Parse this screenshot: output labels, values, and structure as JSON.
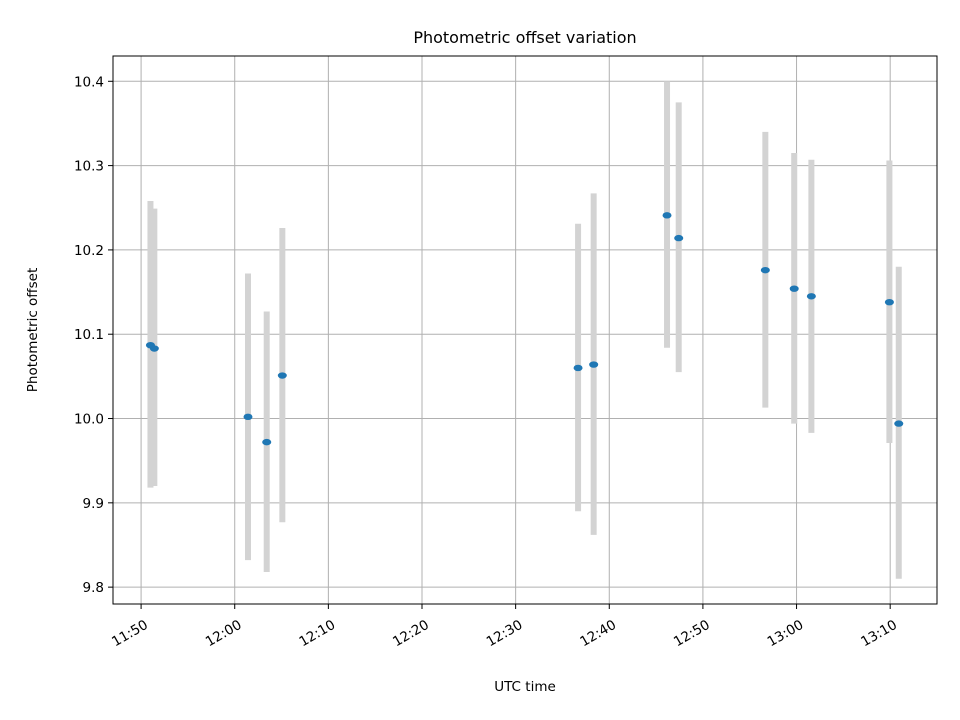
{
  "chart_data": {
    "type": "scatter",
    "title": "Photometric offset variation",
    "xlabel": "UTC time",
    "ylabel": "Photometric offset",
    "xlim": [
      "11:47:00",
      "13:15:00"
    ],
    "ylim": [
      9.78,
      10.43
    ],
    "grid": true,
    "x_ticks": [
      "11:50",
      "12:00",
      "12:10",
      "12:20",
      "12:30",
      "12:40",
      "12:50",
      "13:00",
      "13:10"
    ],
    "y_ticks": [
      "9.8",
      "9.9",
      "10.0",
      "10.1",
      "10.2",
      "10.3",
      "10.4"
    ],
    "point_color": "#1f77b4",
    "errorbar_color": "#d3d3d3",
    "points": [
      {
        "t": "11:51:00",
        "y": 10.087,
        "low": 9.918,
        "high": 10.258
      },
      {
        "t": "11:51:25",
        "y": 10.083,
        "low": 9.92,
        "high": 10.249
      },
      {
        "t": "12:01:25",
        "y": 10.002,
        "low": 9.832,
        "high": 10.172
      },
      {
        "t": "12:03:25",
        "y": 9.972,
        "low": 9.818,
        "high": 10.127
      },
      {
        "t": "12:05:05",
        "y": 10.051,
        "low": 9.877,
        "high": 10.226
      },
      {
        "t": "12:36:40",
        "y": 10.06,
        "low": 9.89,
        "high": 10.231
      },
      {
        "t": "12:38:20",
        "y": 10.064,
        "low": 9.862,
        "high": 10.267
      },
      {
        "t": "12:46:10",
        "y": 10.241,
        "low": 10.084,
        "high": 10.4
      },
      {
        "t": "12:47:25",
        "y": 10.214,
        "low": 10.055,
        "high": 10.375
      },
      {
        "t": "12:56:40",
        "y": 10.176,
        "low": 10.013,
        "high": 10.34
      },
      {
        "t": "12:59:45",
        "y": 10.154,
        "low": 9.994,
        "high": 10.315
      },
      {
        "t": "13:01:35",
        "y": 10.145,
        "low": 9.983,
        "high": 10.307
      },
      {
        "t": "13:09:55",
        "y": 10.138,
        "low": 9.971,
        "high": 10.306
      },
      {
        "t": "13:10:55",
        "y": 9.994,
        "low": 9.81,
        "high": 10.18
      }
    ]
  }
}
